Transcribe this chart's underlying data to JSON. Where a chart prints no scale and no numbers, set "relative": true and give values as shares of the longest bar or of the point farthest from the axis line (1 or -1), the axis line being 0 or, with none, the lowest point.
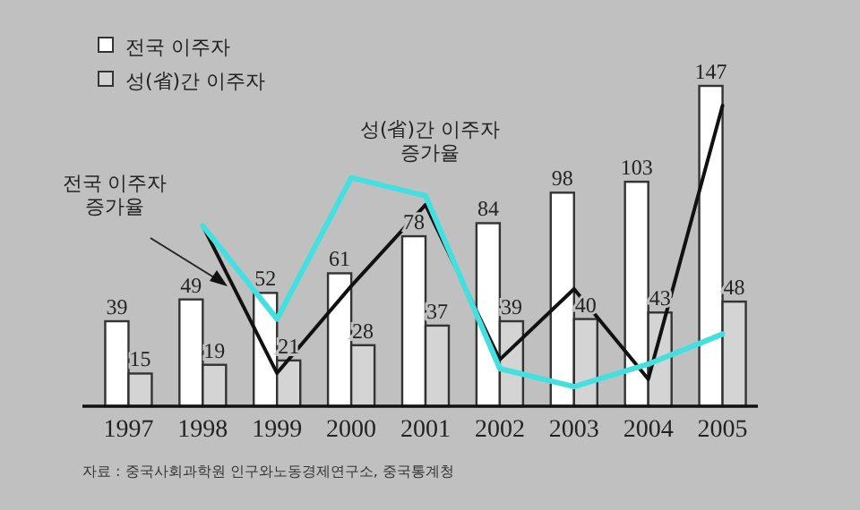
{
  "chart_data": [
    {
      "type": "bar",
      "categories": [
        "1997",
        "1998",
        "1999",
        "2000",
        "2001",
        "2002",
        "2003",
        "2004",
        "2005"
      ],
      "series": [
        {
          "name": "전국 이주자",
          "color": "#ffffff",
          "values": [
            39,
            49,
            52,
            61,
            78,
            84,
            98,
            103,
            147
          ]
        },
        {
          "name": "성(省)간 이주자",
          "color": "#d4d4d4",
          "values": [
            15,
            19,
            21,
            28,
            37,
            39,
            40,
            43,
            48
          ]
        }
      ],
      "data_labels": true,
      "legend": "top left",
      "annotations": [
        "자료 : 중국사회과학원 인구와노동경제연구소, 중국통계청"
      ]
    },
    {
      "type": "line",
      "relative": true,
      "tick_labels": false,
      "categories": [
        "1997",
        "1998",
        "1999",
        "2000",
        "2001",
        "2002",
        "2003",
        "2004",
        "2005"
      ],
      "series": [
        {
          "name": "전국 이주자\n증가율",
          "color": "#111111",
          "values": [
            null,
            0.6,
            0.11,
            0.4,
            0.67,
            0.155,
            0.39,
            0.09,
            1
          ]
        },
        {
          "name": "성(省)간 이주자\n증가율",
          "color": "#44e0e0",
          "values": [
            null,
            0.6,
            0.29,
            0.76,
            0.7,
            0.125,
            0.065,
            0.14,
            0.24
          ]
        }
      ]
    }
  ]
}
